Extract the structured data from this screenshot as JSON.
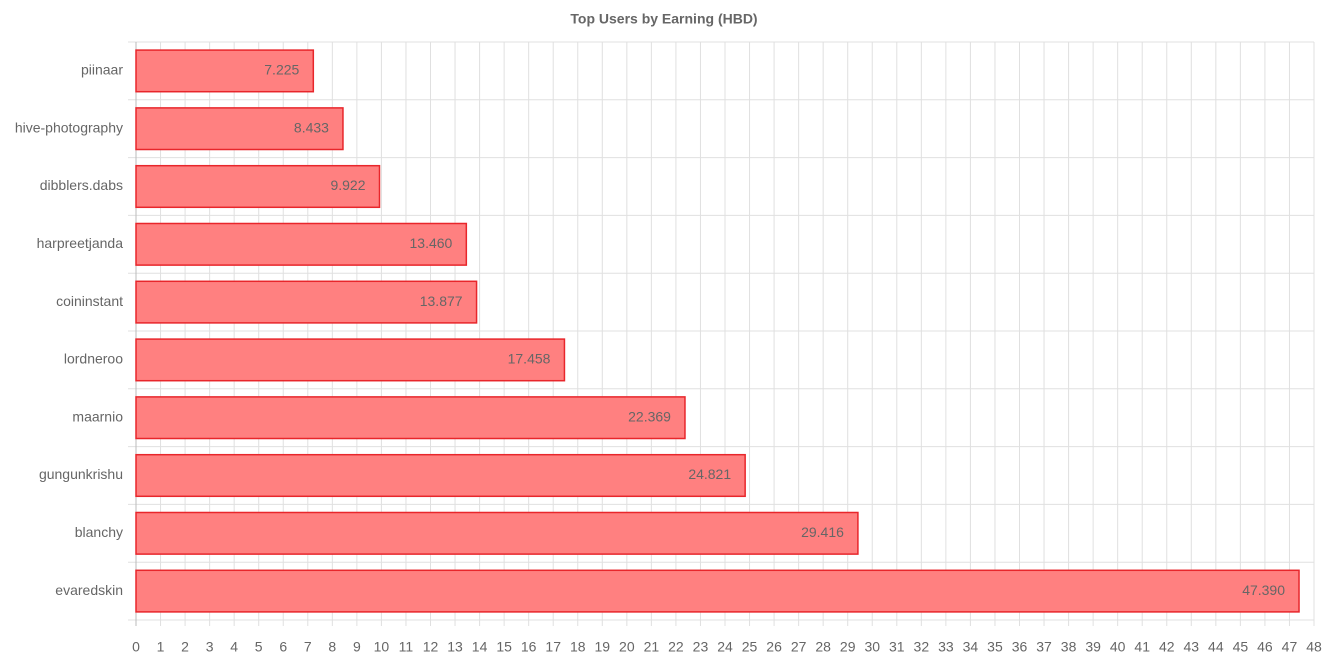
{
  "chart_data": {
    "type": "bar",
    "orientation": "horizontal",
    "title": "Top Users by Earning (HBD)",
    "categories": [
      "piinaar",
      "hive-photography",
      "dibblers.dabs",
      "harpreetjanda",
      "coininstant",
      "lordneroo",
      "maarnio",
      "gungunkrishu",
      "blanchy",
      "evaredskin"
    ],
    "values": [
      7.225,
      8.433,
      9.922,
      13.46,
      13.877,
      17.458,
      22.369,
      24.821,
      29.416,
      47.39
    ],
    "value_labels": [
      "7.225",
      "8.433",
      "9.922",
      "13.460",
      "13.877",
      "17.458",
      "22.369",
      "24.821",
      "29.416",
      "47.390"
    ],
    "color": "#ff8080",
    "border_color": "#e8262b",
    "xlim": [
      0,
      48
    ],
    "xticks": [
      0,
      1,
      2,
      3,
      4,
      5,
      6,
      7,
      8,
      9,
      10,
      11,
      12,
      13,
      14,
      15,
      16,
      17,
      18,
      19,
      20,
      21,
      22,
      23,
      24,
      25,
      26,
      27,
      28,
      29,
      30,
      31,
      32,
      33,
      34,
      35,
      36,
      37,
      38,
      39,
      40,
      41,
      42,
      43,
      44,
      45,
      46,
      47,
      48
    ],
    "grid": true
  }
}
